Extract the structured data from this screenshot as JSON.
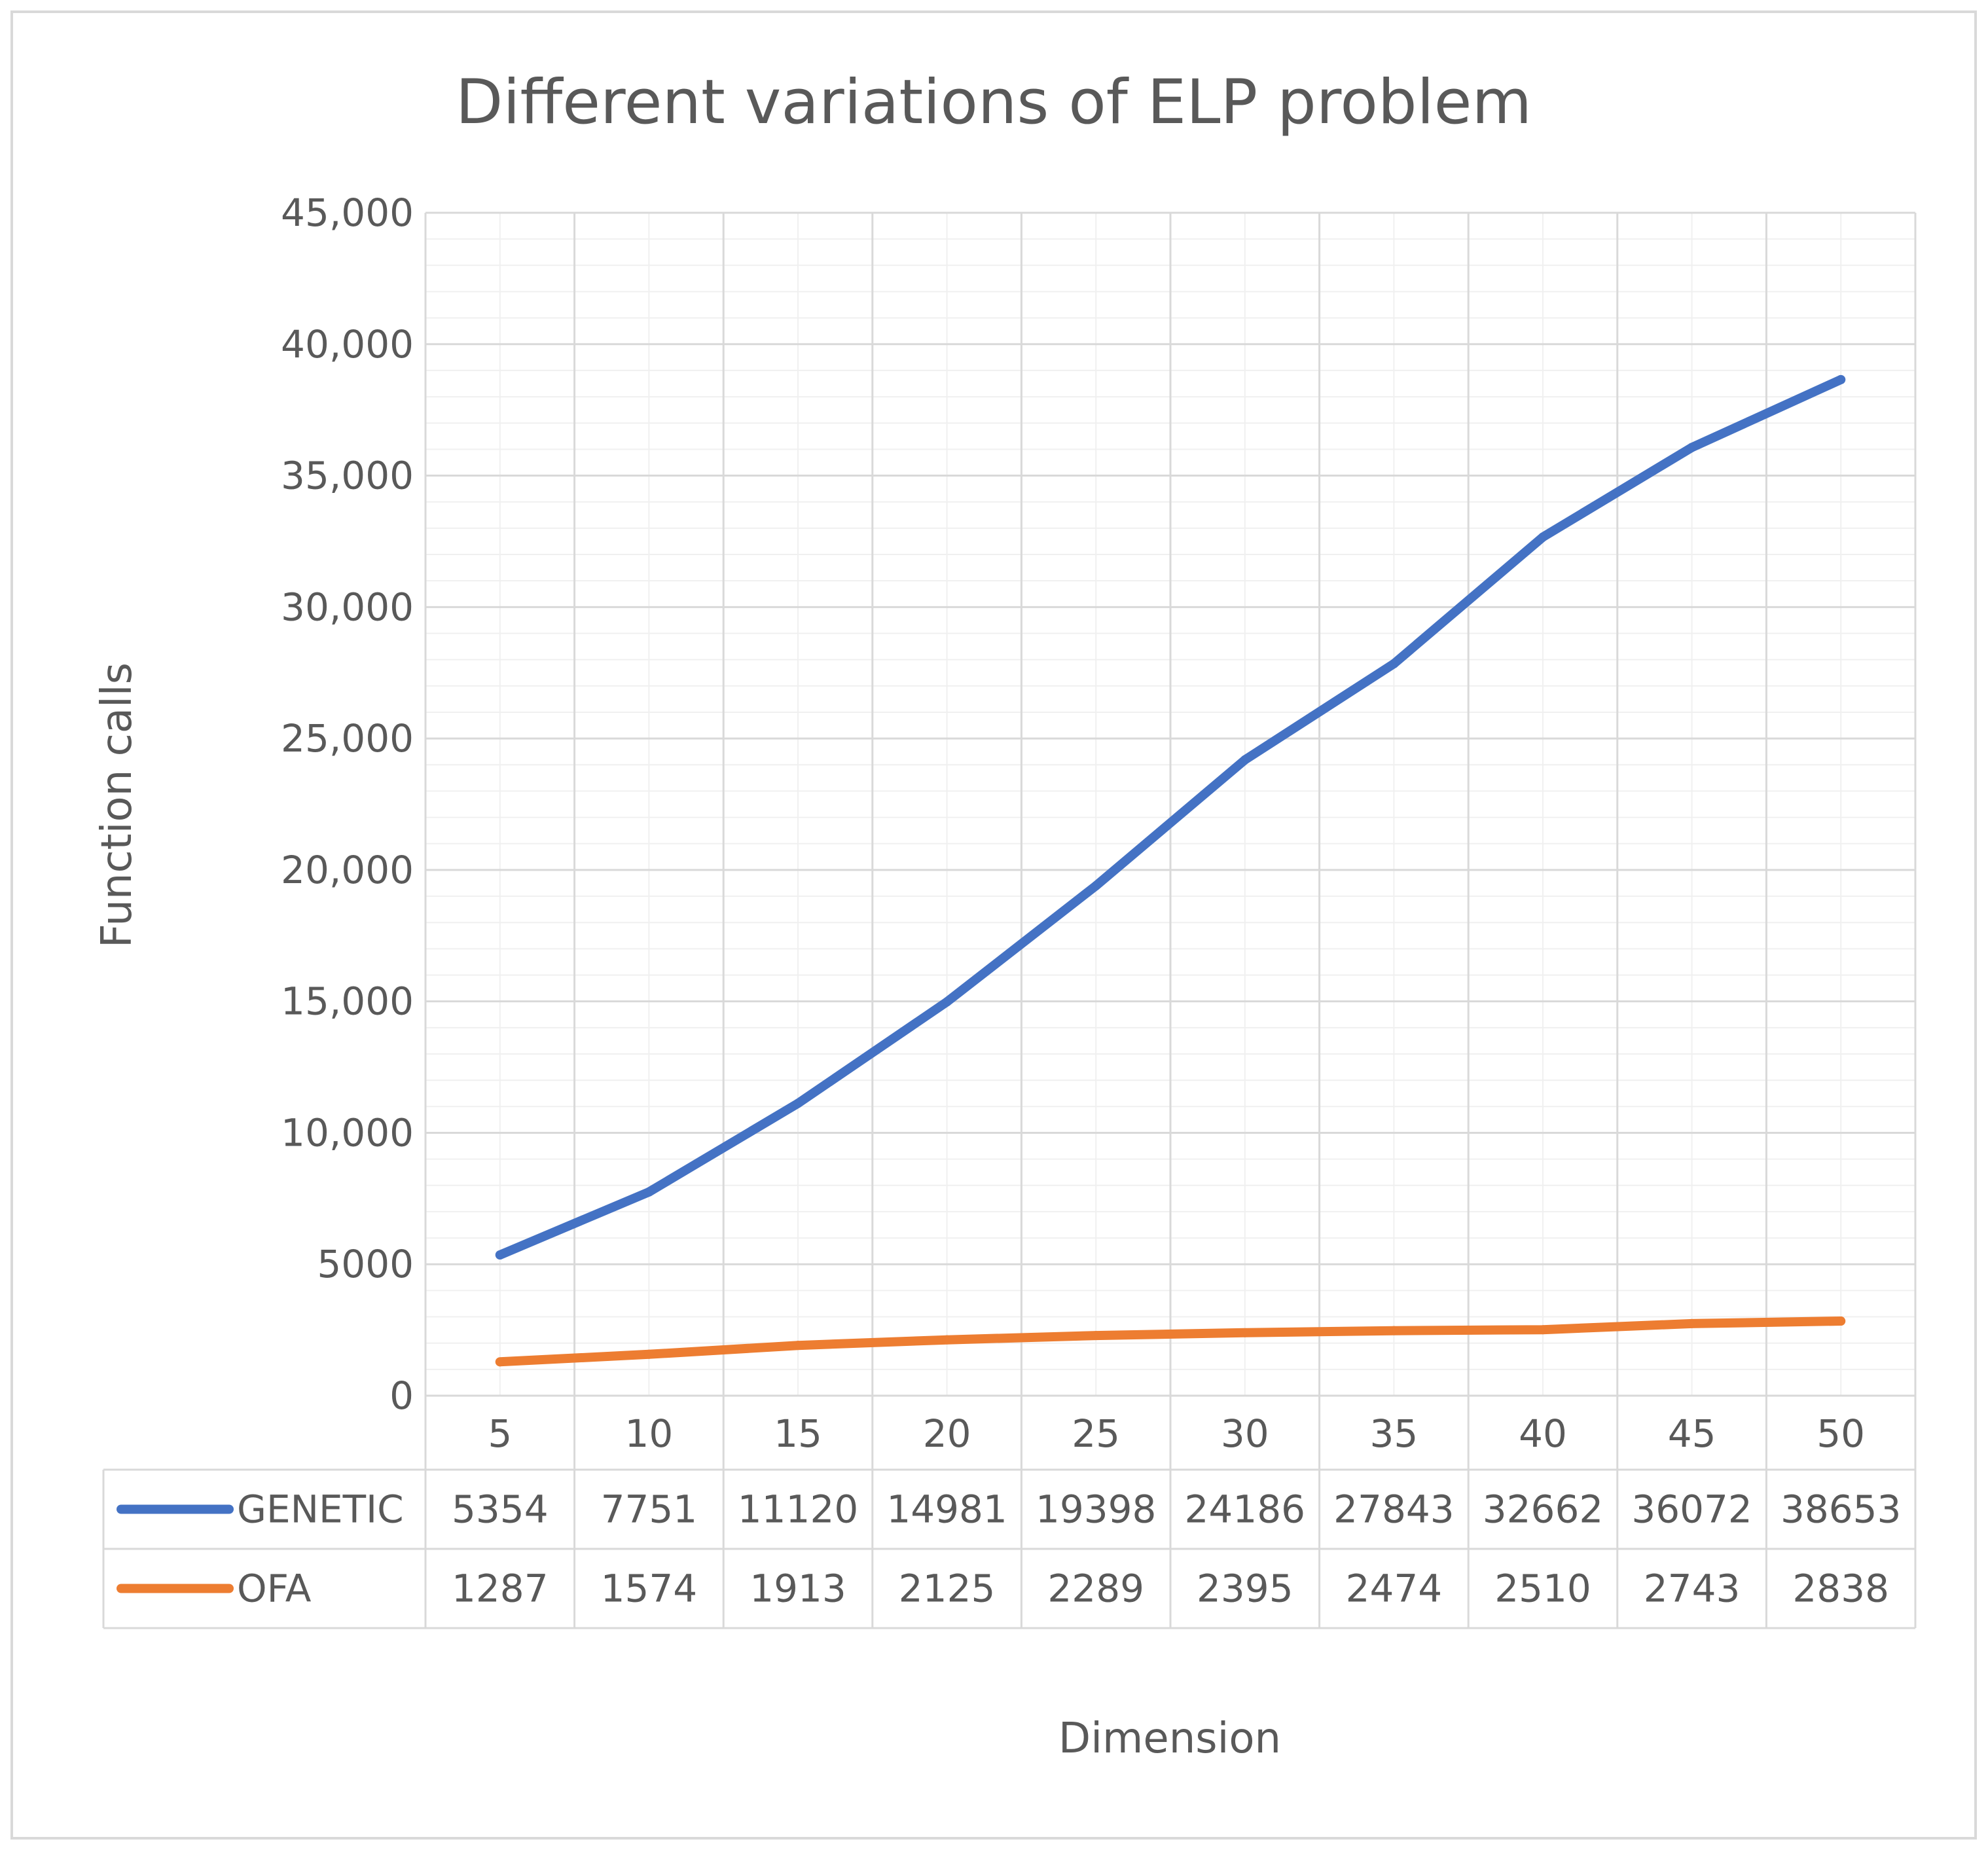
{
  "chart_data": {
    "type": "line",
    "title": "Different variations of ELP problem",
    "xlabel": "Dimension",
    "ylabel": "Function calls",
    "categories": [
      "5",
      "10",
      "15",
      "20",
      "25",
      "30",
      "35",
      "40",
      "45",
      "50"
    ],
    "ylim": [
      0,
      45000
    ],
    "y_ticks": [
      0,
      5000,
      10000,
      15000,
      20000,
      25000,
      30000,
      35000,
      40000,
      45000
    ],
    "y_tick_labels": [
      "0",
      "5000",
      "10,000",
      "15,000",
      "20,000",
      "25,000",
      "30,000",
      "35,000",
      "40,000",
      "45,000"
    ],
    "minor_grid_step": 1000,
    "grid": true,
    "legend": "data-table",
    "series": [
      {
        "name": "GENETIC",
        "color": "#4472C4",
        "values": [
          5354,
          7751,
          11120,
          14981,
          19398,
          24186,
          27843,
          32662,
          36072,
          38653
        ],
        "labels": [
          "5354",
          "7751",
          "11120",
          "14981",
          "19398",
          "24186",
          "27843",
          "32662",
          "36072",
          "38653"
        ]
      },
      {
        "name": "OFA",
        "color": "#ED7D31",
        "values": [
          1287,
          1574,
          1913,
          2125,
          2289,
          2395,
          2474,
          2510,
          2743,
          2838
        ],
        "labels": [
          "1287",
          "1574",
          "1913",
          "2125",
          "2289",
          "2395",
          "2474",
          "2510",
          "2743",
          "2838"
        ]
      }
    ]
  }
}
